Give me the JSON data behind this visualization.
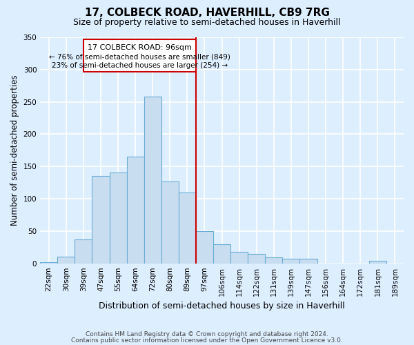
{
  "title": "17, COLBECK ROAD, HAVERHILL, CB9 7RG",
  "subtitle": "Size of property relative to semi-detached houses in Haverhill",
  "xlabel": "Distribution of semi-detached houses by size in Haverhill",
  "ylabel": "Number of semi-detached properties",
  "footer_line1": "Contains HM Land Registry data © Crown copyright and database right 2024.",
  "footer_line2": "Contains public sector information licensed under the Open Government Licence v3.0.",
  "categories": [
    "22sqm",
    "30sqm",
    "39sqm",
    "47sqm",
    "55sqm",
    "64sqm",
    "72sqm",
    "80sqm",
    "89sqm",
    "97sqm",
    "106sqm",
    "114sqm",
    "122sqm",
    "131sqm",
    "139sqm",
    "147sqm",
    "156sqm",
    "164sqm",
    "172sqm",
    "181sqm",
    "189sqm"
  ],
  "values": [
    2,
    10,
    37,
    135,
    141,
    165,
    258,
    127,
    110,
    50,
    30,
    18,
    15,
    9,
    7,
    7,
    0,
    0,
    0,
    4,
    0
  ],
  "bar_color": "#c9ddf0",
  "bar_edge_color": "#6aadd5",
  "annotation_title": "17 COLBECK ROAD: 96sqm",
  "annotation_line1": "← 76% of semi-detached houses are smaller (849)",
  "annotation_line2": "23% of semi-detached houses are larger (254) →",
  "annotation_box_color": "#cc0000",
  "property_line_color": "#cc0000",
  "property_line_index": 8,
  "ylim": [
    0,
    350
  ],
  "yticks": [
    0,
    50,
    100,
    150,
    200,
    250,
    300,
    350
  ],
  "background_color": "#ddeeff",
  "grid_color": "#ffffff",
  "title_fontsize": 11,
  "subtitle_fontsize": 9,
  "tick_fontsize": 7.5,
  "ylabel_fontsize": 8.5,
  "xlabel_fontsize": 9
}
